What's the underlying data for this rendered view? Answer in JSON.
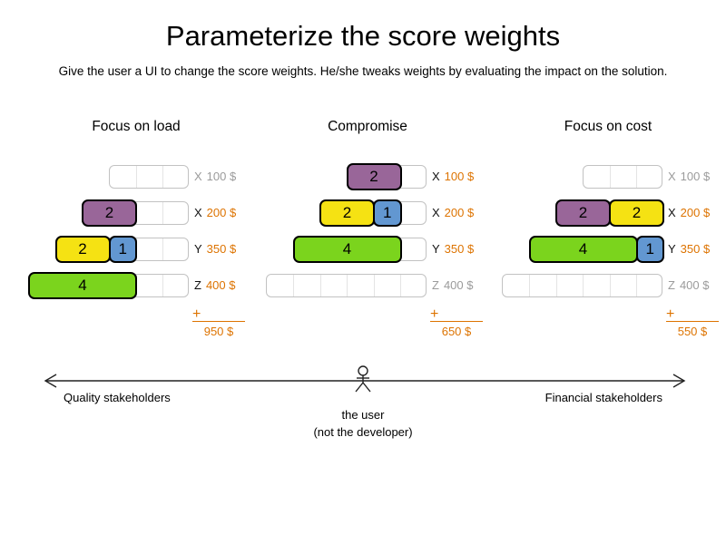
{
  "title": "Parameterize the score weights",
  "subtitle": "Give the user a UI to change the score weights. He/she tweaks weights by evaluating the impact on the solution.",
  "plus_sign": "+",
  "colors": {
    "purple": "#996699",
    "yellow": "#f5e213",
    "blue": "#6297d1",
    "green": "#7bd41d",
    "orange": "#dd7300",
    "gray": "#9b9b9b"
  },
  "columns": [
    {
      "header": "Focus on load",
      "total": "950 $",
      "rows": [
        {
          "label_letter": "X",
          "label_cost": "100 $",
          "capacity": 3,
          "used": false,
          "blocks": []
        },
        {
          "label_letter": "X",
          "label_cost": "200 $",
          "capacity": 4,
          "used": true,
          "blocks": [
            {
              "size": 2,
              "color": "purple"
            }
          ]
        },
        {
          "label_letter": "Y",
          "label_cost": "350 $",
          "capacity": 5,
          "used": true,
          "blocks": [
            {
              "size": 2,
              "color": "yellow"
            },
            {
              "size": 1,
              "color": "blue"
            }
          ]
        },
        {
          "label_letter": "Z",
          "label_cost": "400 $",
          "capacity": 6,
          "used": true,
          "blocks": [
            {
              "size": 4,
              "color": "green"
            }
          ]
        }
      ]
    },
    {
      "header": "Compromise",
      "total": "650 $",
      "rows": [
        {
          "label_letter": "X",
          "label_cost": "100 $",
          "capacity": 3,
          "used": true,
          "blocks": [
            {
              "size": 2,
              "color": "purple"
            }
          ]
        },
        {
          "label_letter": "X",
          "label_cost": "200 $",
          "capacity": 4,
          "used": true,
          "blocks": [
            {
              "size": 2,
              "color": "yellow"
            },
            {
              "size": 1,
              "color": "blue"
            }
          ]
        },
        {
          "label_letter": "Y",
          "label_cost": "350 $",
          "capacity": 5,
          "used": true,
          "blocks": [
            {
              "size": 4,
              "color": "green"
            }
          ]
        },
        {
          "label_letter": "Z",
          "label_cost": "400 $",
          "capacity": 6,
          "used": false,
          "blocks": []
        }
      ]
    },
    {
      "header": "Focus on cost",
      "total": "550 $",
      "rows": [
        {
          "label_letter": "X",
          "label_cost": "100 $",
          "capacity": 3,
          "used": false,
          "blocks": []
        },
        {
          "label_letter": "X",
          "label_cost": "200 $",
          "capacity": 4,
          "used": true,
          "blocks": [
            {
              "size": 2,
              "color": "purple"
            },
            {
              "size": 2,
              "color": "yellow"
            }
          ]
        },
        {
          "label_letter": "Y",
          "label_cost": "350 $",
          "capacity": 5,
          "used": true,
          "blocks": [
            {
              "size": 4,
              "color": "green"
            },
            {
              "size": 1,
              "color": "blue"
            }
          ]
        },
        {
          "label_letter": "Z",
          "label_cost": "400 $",
          "capacity": 6,
          "used": false,
          "blocks": []
        }
      ]
    }
  ],
  "axis": {
    "left_label": "Quality stakeholders",
    "right_label": "Financial stakeholders",
    "user_label_line1": "the user",
    "user_label_line2": "(not the developer)"
  }
}
